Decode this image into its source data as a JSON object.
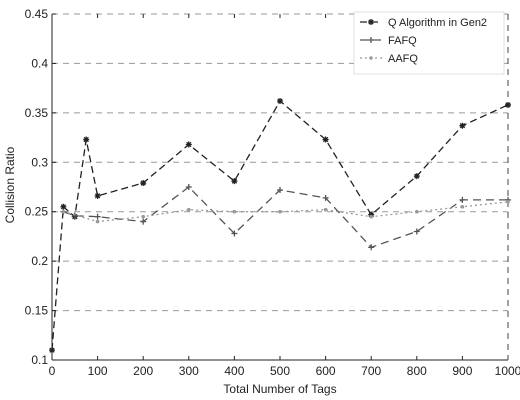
{
  "chart_data": {
    "type": "line",
    "title": "",
    "xlabel": "Total Number of Tags",
    "ylabel": "Collision Ratio",
    "xlim": [
      0,
      1000
    ],
    "ylim": [
      0.1,
      0.45
    ],
    "x_ticks": [
      "0",
      "100",
      "200",
      "300",
      "400",
      "500",
      "600",
      "700",
      "800",
      "900",
      "1000"
    ],
    "y_ticks": [
      "0.1",
      "0.15",
      "0.2",
      "0.25",
      "0.3",
      "0.35",
      "0.4",
      "0.45"
    ],
    "grid": true,
    "legend_position": "top-right",
    "series": [
      {
        "name": "Q Algorithm in Gen2",
        "color": "#222222",
        "dash": "7,4",
        "marker": "star",
        "points": [
          [
            0,
            0.11
          ],
          [
            25,
            0.255
          ],
          [
            50,
            0.245
          ],
          [
            75,
            0.323
          ],
          [
            100,
            0.266
          ],
          [
            200,
            0.279
          ],
          [
            300,
            0.318
          ],
          [
            400,
            0.281
          ],
          [
            500,
            0.362
          ],
          [
            600,
            0.323
          ],
          [
            700,
            0.247
          ],
          [
            800,
            0.286
          ],
          [
            900,
            0.337
          ],
          [
            1000,
            0.358
          ]
        ]
      },
      {
        "name": "FAFQ",
        "color": "#555555",
        "dash": "8,5",
        "marker": "plus",
        "points": [
          [
            25,
            0.25
          ],
          [
            50,
            0.246
          ],
          [
            100,
            0.245
          ],
          [
            200,
            0.24
          ],
          [
            300,
            0.275
          ],
          [
            400,
            0.228
          ],
          [
            500,
            0.272
          ],
          [
            600,
            0.264
          ],
          [
            700,
            0.214
          ],
          [
            800,
            0.23
          ],
          [
            900,
            0.262
          ],
          [
            1000,
            0.262
          ]
        ]
      },
      {
        "name": "AAFQ",
        "color": "#999999",
        "dash": "2,3",
        "marker": "dot",
        "points": [
          [
            25,
            0.25
          ],
          [
            100,
            0.24
          ],
          [
            200,
            0.245
          ],
          [
            300,
            0.252
          ],
          [
            400,
            0.25
          ],
          [
            500,
            0.25
          ],
          [
            600,
            0.252
          ],
          [
            700,
            0.245
          ],
          [
            800,
            0.25
          ],
          [
            900,
            0.255
          ],
          [
            1000,
            0.26
          ]
        ]
      }
    ]
  }
}
